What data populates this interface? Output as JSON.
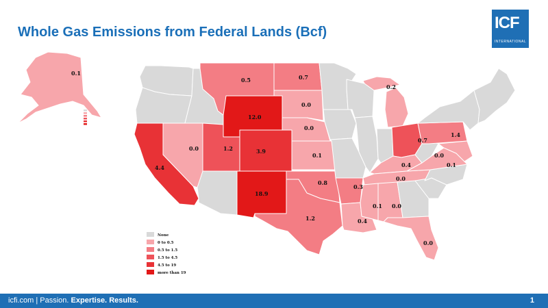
{
  "title": "Whole Gas Emissions from Federal Lands (Bcf)",
  "logo": {
    "main": "ICF",
    "sub": "INTERNATIONAL"
  },
  "footer": {
    "site": "icfi.com",
    "separator": "|",
    "passion": "Passion.",
    "expertise": "Expertise.",
    "results": "Results.",
    "page": "1"
  },
  "legend": {
    "items": [
      {
        "label": "None",
        "color": "#d9d9d9"
      },
      {
        "label": "0    to 0.5",
        "color": "#f7a6ab"
      },
      {
        "label": "0.5   to 1.5",
        "color": "#f37d84"
      },
      {
        "label": "1.5   to 4.5",
        "color": "#ee5259"
      },
      {
        "label": "4.5   to 19",
        "color": "#e83236"
      },
      {
        "label": "more than 19",
        "color": "#e21818"
      }
    ]
  },
  "colors": {
    "none": "#d9d9d9",
    "c1": "#f7a6ab",
    "c2": "#f37d84",
    "c3": "#ee5259",
    "c4": "#e83236",
    "title": "#1a6fb8",
    "footer_bg": "#1f6fb5"
  },
  "states": {
    "AK": "0.1",
    "WA": "",
    "OR": "",
    "CA": "4.4",
    "NV": "0.0",
    "ID": "",
    "MT": "0.5",
    "WY": "12.0",
    "UT": "1.2",
    "CO": "3.9",
    "AZ": "",
    "NM": "18.9",
    "ND": "0.7",
    "SD": "0.0",
    "NE": "0.0",
    "KS": "0.1",
    "OK": "0.8",
    "TX": "1.2",
    "MN": "",
    "IA": "",
    "MO": "",
    "AR": "0.3",
    "LA": "0.4",
    "WI": "",
    "IL": "",
    "MI": "0.2",
    "IN": "",
    "OH": "0.7",
    "KY": "0.4",
    "TN": "0.0",
    "MS": "0.1",
    "AL": "0.0",
    "GA": "",
    "FL": "0.0",
    "SC": "",
    "NC": "",
    "VA": "0.0",
    "WV": "",
    "PA": "1.4",
    "NY": "",
    "MD": "0.1",
    "NE_states": ""
  }
}
